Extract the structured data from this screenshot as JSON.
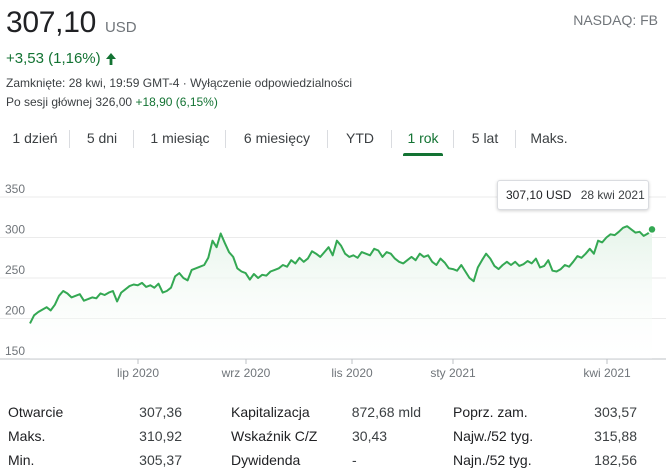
{
  "quote": {
    "price": "307,10",
    "currency": "USD",
    "exchange": "NASDAQ: FB",
    "change": "+3,53 (1,16%)",
    "closed_line": "Zamknięte: 28 kwi, 19:59 GMT-4 · Wyłączenie odpowiedzialności",
    "after_hours_label": "Po sesji głównej 326,00",
    "after_hours_change": "+18,90 (6,15%)",
    "up_color": "#137333"
  },
  "tabs": [
    {
      "label": "1 dzień",
      "active": false
    },
    {
      "label": "5 dni",
      "active": false
    },
    {
      "label": "1 miesiąc",
      "active": false
    },
    {
      "label": "6 miesięcy",
      "active": false
    },
    {
      "label": "YTD",
      "active": false
    },
    {
      "label": "1 rok",
      "active": true
    },
    {
      "label": "5 lat",
      "active": false
    },
    {
      "label": "Maks.",
      "active": false
    }
  ],
  "tooltip": {
    "price": "307,10 USD",
    "date": "28 kwi 2021"
  },
  "chart_data": {
    "type": "area",
    "ylim": [
      150,
      350
    ],
    "yticks": [
      "350",
      "300",
      "250",
      "200",
      "150"
    ],
    "xticks": [
      "lip 2020",
      "wrz 2020",
      "lis 2020",
      "sty 2021",
      "kwi 2021"
    ],
    "grid": true,
    "line_color": "#34a853",
    "series": [
      {
        "values": [
          194,
          204,
          208,
          211,
          214,
          210,
          217,
          228,
          234,
          231,
          226,
          228,
          230,
          222,
          224,
          226,
          225,
          231,
          229,
          232,
          234,
          221,
          232,
          236,
          240,
          242,
          241,
          244,
          239,
          241,
          238,
          243,
          232,
          234,
          238,
          252,
          256,
          250,
          247,
          260,
          262,
          264,
          266,
          275,
          296,
          288,
          305,
          293,
          282,
          276,
          262,
          258,
          256,
          248,
          255,
          250,
          254,
          253,
          258,
          260,
          262,
          266,
          264,
          272,
          268,
          275,
          270,
          274,
          283,
          280,
          276,
          282,
          288,
          278,
          296,
          290,
          280,
          276,
          278,
          275,
          282,
          280,
          278,
          286,
          284,
          276,
          282,
          280,
          274,
          270,
          268,
          272,
          276,
          272,
          280,
          276,
          278,
          270,
          266,
          274,
          269,
          262,
          261,
          259,
          266,
          258,
          250,
          246,
          263,
          272,
          280,
          274,
          265,
          261,
          266,
          270,
          266,
          270,
          265,
          267,
          271,
          268,
          274,
          263,
          265,
          272,
          259,
          258,
          261,
          266,
          264,
          270,
          277,
          275,
          280,
          286,
          280,
          296,
          294,
          300,
          304,
          303,
          307,
          312,
          314,
          310,
          306,
          307,
          302,
          305,
          310
        ]
      }
    ]
  },
  "stats": {
    "col1": [
      {
        "label": "Otwarcie",
        "value": "307,36"
      },
      {
        "label": "Maks.",
        "value": "310,92"
      },
      {
        "label": "Min.",
        "value": "305,37"
      }
    ],
    "col2": [
      {
        "label": "Kapitalizacja",
        "value": "872,68 mld"
      },
      {
        "label": "Wskaźnik C/Z",
        "value": "30,43"
      },
      {
        "label": "Dywidenda",
        "value": "-"
      }
    ],
    "col3": [
      {
        "label": "Poprz. zam.",
        "value": "303,57"
      },
      {
        "label": "Najw./52 tyg.",
        "value": "315,88"
      },
      {
        "label": "Najn./52 tyg.",
        "value": "182,56"
      }
    ]
  }
}
